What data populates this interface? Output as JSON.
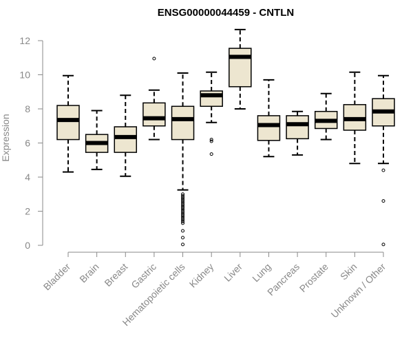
{
  "chart_data": {
    "type": "boxplot",
    "title": "ENSG00000044459 - CNTLN",
    "xlabel": "",
    "ylabel": "Expression",
    "ylim": [
      0,
      12.6
    ],
    "yticks": [
      0,
      2,
      4,
      6,
      8,
      10,
      12
    ],
    "grid": false,
    "box_fill": "#ede6d0",
    "categories": [
      "Bladder",
      "Brain",
      "Breast",
      "Gastric",
      "Hematopoietic cells",
      "Kidney",
      "Liver",
      "Lung",
      "Pancreas",
      "Prostate",
      "Skin",
      "Unknown / Other"
    ],
    "boxes": [
      {
        "whisker_low": 4.3,
        "q1": 6.2,
        "median": 7.35,
        "q3": 8.2,
        "whisker_high": 9.95,
        "outliers": []
      },
      {
        "whisker_low": 4.45,
        "q1": 5.45,
        "median": 6.0,
        "q3": 6.5,
        "whisker_high": 7.9,
        "outliers": []
      },
      {
        "whisker_low": 4.05,
        "q1": 5.45,
        "median": 6.35,
        "q3": 6.95,
        "whisker_high": 8.8,
        "outliers": []
      },
      {
        "whisker_low": 6.2,
        "q1": 7.0,
        "median": 7.45,
        "q3": 8.35,
        "whisker_high": 9.1,
        "outliers": [
          10.95
        ]
      },
      {
        "whisker_low": 3.25,
        "q1": 6.2,
        "median": 7.4,
        "q3": 8.15,
        "whisker_high": 10.1,
        "outliers": [
          3.0,
          2.9,
          2.8,
          2.7,
          2.6,
          2.5,
          2.4,
          2.3,
          2.2,
          2.1,
          2.0,
          1.9,
          1.8,
          1.7,
          1.6,
          1.5,
          1.4,
          1.3,
          0.85,
          0.45,
          0.05
        ]
      },
      {
        "whisker_low": 7.2,
        "q1": 8.15,
        "median": 8.8,
        "q3": 9.05,
        "whisker_high": 10.15,
        "outliers": [
          6.2,
          6.1,
          5.35
        ]
      },
      {
        "whisker_low": 8.0,
        "q1": 9.3,
        "median": 11.05,
        "q3": 11.55,
        "whisker_high": 12.65,
        "outliers": []
      },
      {
        "whisker_low": 5.2,
        "q1": 6.15,
        "median": 7.05,
        "q3": 7.6,
        "whisker_high": 9.7,
        "outliers": []
      },
      {
        "whisker_low": 5.3,
        "q1": 6.25,
        "median": 7.1,
        "q3": 7.6,
        "whisker_high": 7.85,
        "outliers": []
      },
      {
        "whisker_low": 6.2,
        "q1": 6.85,
        "median": 7.3,
        "q3": 7.85,
        "whisker_high": 8.9,
        "outliers": []
      },
      {
        "whisker_low": 4.8,
        "q1": 6.75,
        "median": 7.4,
        "q3": 8.25,
        "whisker_high": 10.15,
        "outliers": []
      },
      {
        "whisker_low": 4.8,
        "q1": 7.0,
        "median": 7.85,
        "q3": 8.6,
        "whisker_high": 9.95,
        "outliers": [
          4.4,
          2.6,
          0.05
        ]
      }
    ]
  }
}
